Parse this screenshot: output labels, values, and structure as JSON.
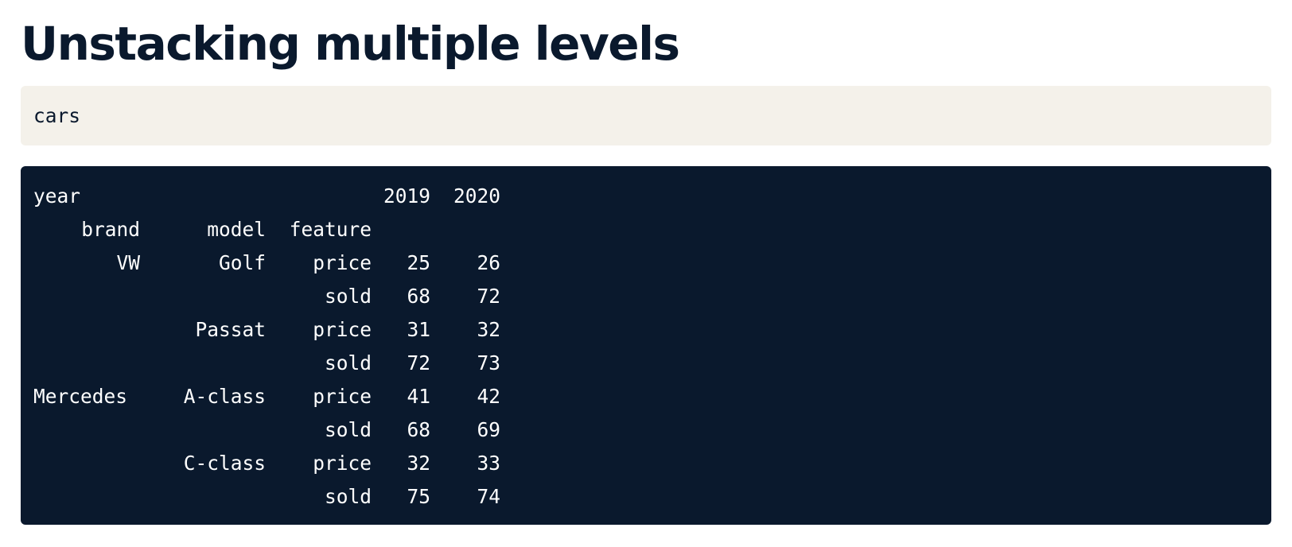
{
  "page": {
    "title": "Unstacking multiple levels"
  },
  "input_cell": {
    "code": "cars"
  },
  "output": {
    "columns_level_name": "year",
    "column_years": [
      "2019",
      "2020"
    ],
    "index_names": [
      "brand",
      "model",
      "feature"
    ],
    "rows": [
      {
        "brand": "VW",
        "model": "Golf",
        "feature": "price",
        "y2019": "25",
        "y2020": "26"
      },
      {
        "brand": "",
        "model": "",
        "feature": "sold",
        "y2019": "68",
        "y2020": "72"
      },
      {
        "brand": "",
        "model": "Passat",
        "feature": "price",
        "y2019": "31",
        "y2020": "32"
      },
      {
        "brand": "",
        "model": "",
        "feature": "sold",
        "y2019": "72",
        "y2020": "73"
      },
      {
        "brand": "Mercedes",
        "model": "A-class",
        "feature": "price",
        "y2019": "41",
        "y2020": "42"
      },
      {
        "brand": "",
        "model": "",
        "feature": "sold",
        "y2019": "68",
        "y2020": "69"
      },
      {
        "brand": "",
        "model": "C-class",
        "feature": "price",
        "y2019": "32",
        "y2020": "33"
      },
      {
        "brand": "",
        "model": "",
        "feature": "sold",
        "y2019": "75",
        "y2020": "74"
      }
    ]
  },
  "colors": {
    "title": "#0a192d",
    "input_background": "#f4f1ea",
    "output_background": "#0a192d",
    "output_text": "#ffffff"
  }
}
